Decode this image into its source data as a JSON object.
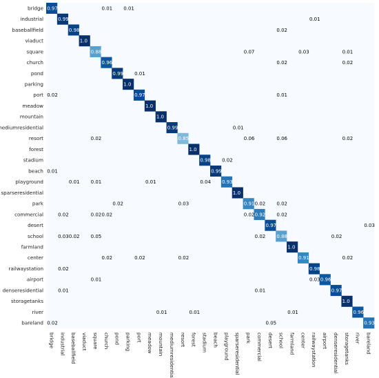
{
  "chart_data": {
    "type": "heatmap",
    "title": "",
    "xlabel": "",
    "ylabel": "",
    "colormap": "Blues",
    "categories": [
      "bridge",
      "industrial",
      "baseballfield",
      "viaduct",
      "square",
      "church",
      "pond",
      "parking",
      "port",
      "meadow",
      "mountain",
      "mediumresidential",
      "resort",
      "forest",
      "stadium",
      "beach",
      "playground",
      "sparseresidential",
      "park",
      "commercial",
      "desert",
      "school",
      "farmland",
      "center",
      "railwaystation",
      "airport",
      "denseresidential",
      "storagetanks",
      "river",
      "bareland"
    ],
    "annotations": [
      {
        "row": "bridge",
        "col": "bridge",
        "text": "0.97"
      },
      {
        "row": "bridge",
        "col": "church",
        "text": "0.01"
      },
      {
        "row": "bridge",
        "col": "parking",
        "text": "0.01"
      },
      {
        "row": "industrial",
        "col": "industrial",
        "text": "0.99"
      },
      {
        "row": "industrial",
        "col": "railwaystation",
        "text": "0.01"
      },
      {
        "row": "baseballfield",
        "col": "baseballfield",
        "text": "0.98"
      },
      {
        "row": "baseballfield",
        "col": "school",
        "text": "0.02"
      },
      {
        "row": "viaduct",
        "col": "viaduct",
        "text": "1.0"
      },
      {
        "row": "square",
        "col": "square",
        "text": "0.88"
      },
      {
        "row": "square",
        "col": "park",
        "text": "0.07"
      },
      {
        "row": "square",
        "col": "center",
        "text": "0.03"
      },
      {
        "row": "square",
        "col": "storagetanks",
        "text": "0.01"
      },
      {
        "row": "church",
        "col": "church",
        "text": "0.96"
      },
      {
        "row": "church",
        "col": "school",
        "text": "0.02"
      },
      {
        "row": "church",
        "col": "storagetanks",
        "text": "0.02"
      },
      {
        "row": "pond",
        "col": "pond",
        "text": "0.99"
      },
      {
        "row": "pond",
        "col": "port",
        "text": "0.01"
      },
      {
        "row": "parking",
        "col": "parking",
        "text": "1.0"
      },
      {
        "row": "port",
        "col": "bridge",
        "text": "0.02"
      },
      {
        "row": "port",
        "col": "port",
        "text": "0.97"
      },
      {
        "row": "port",
        "col": "school",
        "text": "0.01"
      },
      {
        "row": "meadow",
        "col": "meadow",
        "text": "1.0"
      },
      {
        "row": "mountain",
        "col": "mountain",
        "text": "1.0"
      },
      {
        "row": "mediumresidential",
        "col": "mediumresidential",
        "text": "0.99"
      },
      {
        "row": "mediumresidential",
        "col": "sparseresidential",
        "text": "0.01"
      },
      {
        "row": "resort",
        "col": "square",
        "text": "0.02"
      },
      {
        "row": "resort",
        "col": "resort",
        "text": "0.85"
      },
      {
        "row": "resort",
        "col": "park",
        "text": "0.06"
      },
      {
        "row": "resort",
        "col": "school",
        "text": "0.06"
      },
      {
        "row": "resort",
        "col": "storagetanks",
        "text": "0.02"
      },
      {
        "row": "forest",
        "col": "forest",
        "text": "1.0"
      },
      {
        "row": "stadium",
        "col": "stadium",
        "text": "0.98"
      },
      {
        "row": "stadium",
        "col": "playground",
        "text": "0.02"
      },
      {
        "row": "beach",
        "col": "bridge",
        "text": "0.01"
      },
      {
        "row": "beach",
        "col": "beach",
        "text": "0.99"
      },
      {
        "row": "playground",
        "col": "baseballfield",
        "text": "0.01"
      },
      {
        "row": "playground",
        "col": "square",
        "text": "0.01"
      },
      {
        "row": "playground",
        "col": "meadow",
        "text": "0.01"
      },
      {
        "row": "playground",
        "col": "stadium",
        "text": "0.04"
      },
      {
        "row": "playground",
        "col": "playground",
        "text": "0.93"
      },
      {
        "row": "sparseresidential",
        "col": "sparseresidential",
        "text": "1.0"
      },
      {
        "row": "park",
        "col": "pond",
        "text": "0.02"
      },
      {
        "row": "park",
        "col": "resort",
        "text": "0.03"
      },
      {
        "row": "park",
        "col": "park",
        "text": "0.91"
      },
      {
        "row": "park",
        "col": "commercial",
        "text": "0.02"
      },
      {
        "row": "park",
        "col": "school",
        "text": "0.02"
      },
      {
        "row": "commercial",
        "col": "industrial",
        "text": "0.02"
      },
      {
        "row": "commercial",
        "col": "square",
        "text": "0.02"
      },
      {
        "row": "commercial",
        "col": "church",
        "text": "0.02"
      },
      {
        "row": "commercial",
        "col": "park",
        "text": "0.02"
      },
      {
        "row": "commercial",
        "col": "commercial",
        "text": "0.92"
      },
      {
        "row": "commercial",
        "col": "school",
        "text": "0.02"
      },
      {
        "row": "desert",
        "col": "desert",
        "text": "0.97"
      },
      {
        "row": "desert",
        "col": "bareland",
        "text": "0.03"
      },
      {
        "row": "school",
        "col": "industrial",
        "text": "0.03"
      },
      {
        "row": "school",
        "col": "baseballfield",
        "text": "0.02"
      },
      {
        "row": "school",
        "col": "square",
        "text": "0.05"
      },
      {
        "row": "school",
        "col": "commercial",
        "text": "0.02"
      },
      {
        "row": "school",
        "col": "school",
        "text": "0.88"
      },
      {
        "row": "school",
        "col": "denseresidential",
        "text": "0.02"
      },
      {
        "row": "farmland",
        "col": "farmland",
        "text": "1.0"
      },
      {
        "row": "center",
        "col": "church",
        "text": "0.02"
      },
      {
        "row": "center",
        "col": "port",
        "text": "0.02"
      },
      {
        "row": "center",
        "col": "resort",
        "text": "0.02"
      },
      {
        "row": "center",
        "col": "center",
        "text": "0.91"
      },
      {
        "row": "center",
        "col": "storagetanks",
        "text": "0.02"
      },
      {
        "row": "railwaystation",
        "col": "industrial",
        "text": "0.02"
      },
      {
        "row": "railwaystation",
        "col": "railwaystation",
        "text": "0.98"
      },
      {
        "row": "airport",
        "col": "square",
        "text": "0.01"
      },
      {
        "row": "airport",
        "col": "railwaystation",
        "text": "0.03"
      },
      {
        "row": "airport",
        "col": "airport",
        "text": "0.96"
      },
      {
        "row": "denseresidential",
        "col": "industrial",
        "text": "0.01"
      },
      {
        "row": "denseresidential",
        "col": "commercial",
        "text": "0.01"
      },
      {
        "row": "denseresidential",
        "col": "denseresidential",
        "text": "0.97"
      },
      {
        "row": "storagetanks",
        "col": "storagetanks",
        "text": "1.0"
      },
      {
        "row": "river",
        "col": "mountain",
        "text": "0.01"
      },
      {
        "row": "river",
        "col": "forest",
        "text": "0.01"
      },
      {
        "row": "river",
        "col": "farmland",
        "text": "0.01"
      },
      {
        "row": "river",
        "col": "river",
        "text": "0.96"
      },
      {
        "row": "bareland",
        "col": "bridge",
        "text": "0.02"
      },
      {
        "row": "bareland",
        "col": "desert",
        "text": "0.05"
      },
      {
        "row": "bareland",
        "col": "bareland",
        "text": "0.93"
      }
    ]
  }
}
